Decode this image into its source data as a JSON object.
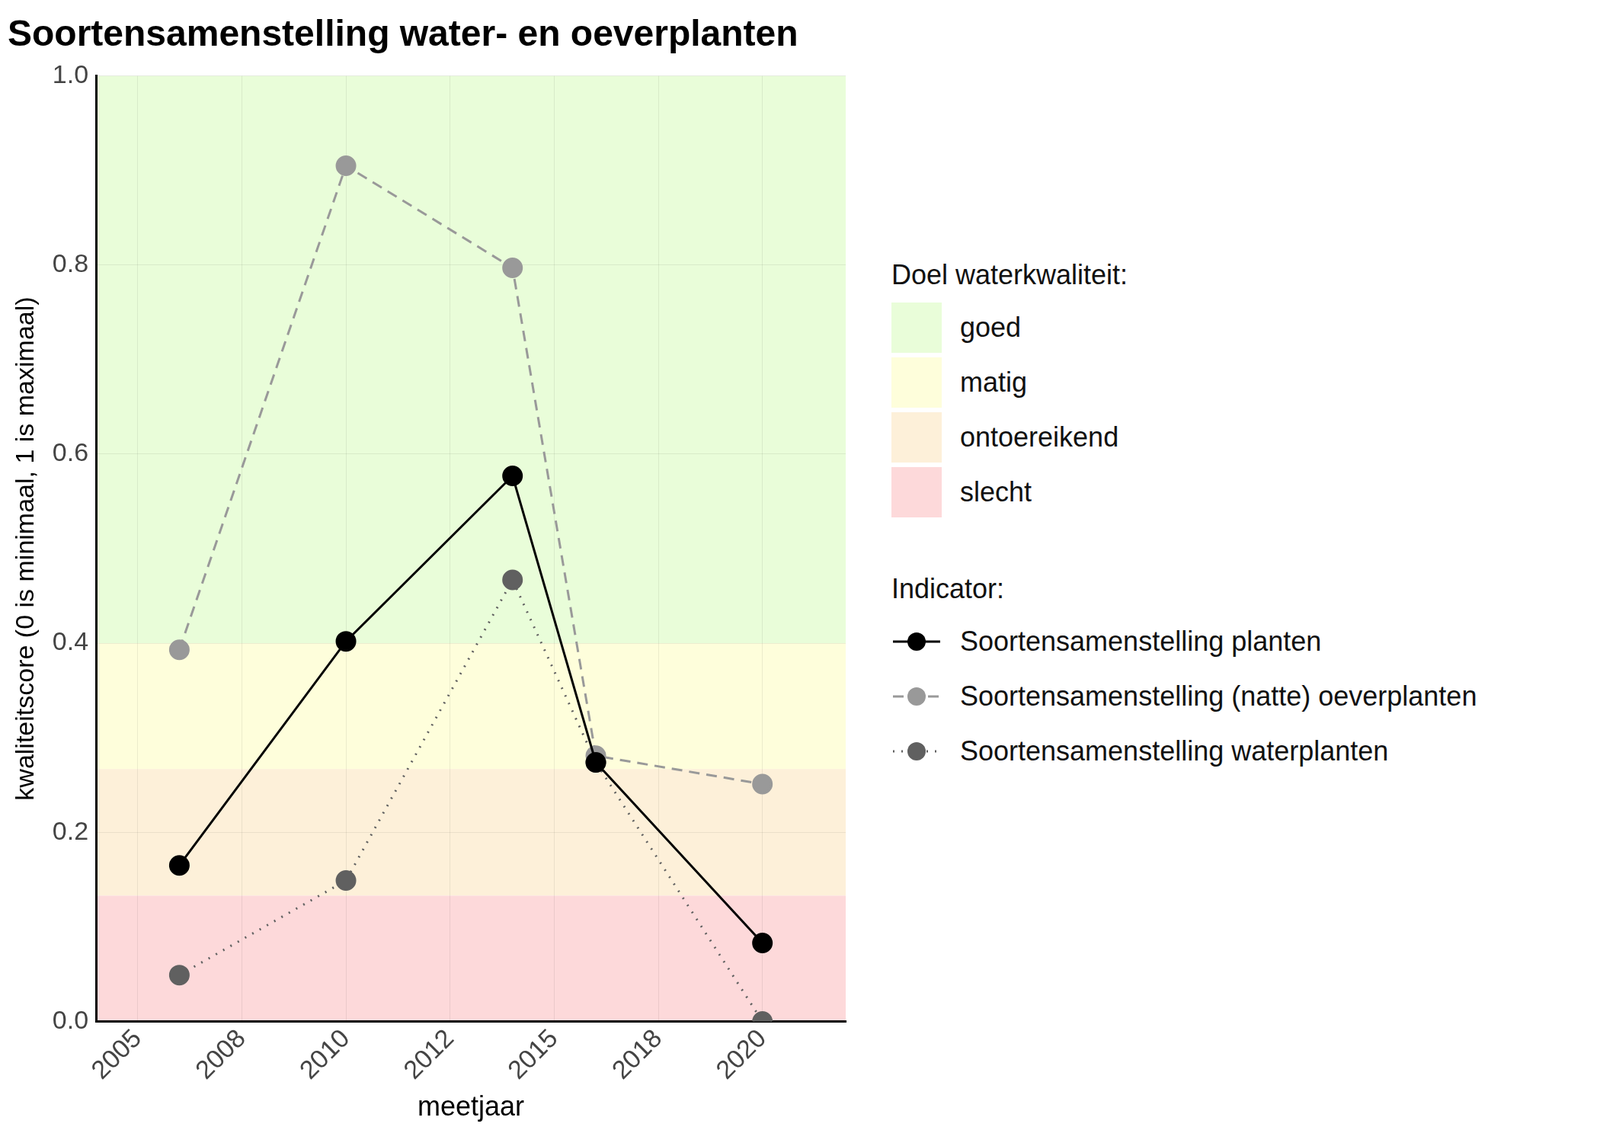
{
  "chart_data": {
    "type": "line",
    "title": "Soortensamenstelling water- en oeverplanten",
    "x_label": "meetjaar",
    "y_label": "kwaliteitscore (0 is minimaal, 1 is maximaal)",
    "x": [
      2006,
      2010,
      2014,
      2016,
      2020
    ],
    "series": [
      {
        "name": "Soortensamenstelling planten",
        "color": "#000000",
        "marker": "circle",
        "line_style": "solid",
        "values": [
          0.165,
          0.402,
          0.577,
          0.274,
          0.083
        ]
      },
      {
        "name": "Soortensamenstelling (natte) oeverplanten",
        "color": "#999999",
        "marker": "circle",
        "line_style": "dashed",
        "values": [
          0.393,
          0.905,
          0.797,
          0.281,
          0.251
        ]
      },
      {
        "name": "Soortensamenstelling waterplanten",
        "color": "#606060",
        "marker": "circle",
        "line_style": "dotted",
        "values": [
          0.049,
          0.149,
          0.467,
          0.274,
          0.0
        ]
      }
    ],
    "legend_title": "Indicator:",
    "bands_title": "Doel waterkwaliteit:",
    "bands": [
      {
        "name": "goed",
        "color": "#e9fdd9",
        "range": [
          0.4,
          1.0
        ]
      },
      {
        "name": "matig",
        "color": "#fefedb",
        "range": [
          0.267,
          0.4
        ]
      },
      {
        "name": "ontoereikend",
        "color": "#fdf0d9",
        "range": [
          0.133,
          0.267
        ]
      },
      {
        "name": "slecht",
        "color": "#fdd9da",
        "range": [
          0.0,
          0.133
        ]
      }
    ],
    "xlim": [
      2004,
      2022
    ],
    "xticks": [
      2005,
      {
        "value": 2007.5,
        "label": "2008"
      },
      2010,
      {
        "value": 2012.5,
        "label": "2012"
      },
      2015,
      {
        "value": 2017.5,
        "label": "2018"
      },
      2020
    ],
    "ylim": [
      0,
      1
    ],
    "yticks": [
      {
        "value": 0,
        "label": "0.0"
      },
      0.2,
      0.4,
      0.6,
      0.8,
      {
        "value": 1,
        "label": "1.0"
      }
    ],
    "grid": true,
    "legend": "right"
  }
}
